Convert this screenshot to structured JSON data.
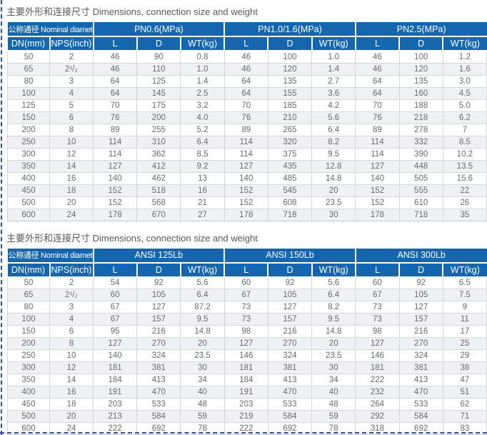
{
  "page": {
    "accent_blue": "#1467ae",
    "border_color": "#2d4f9e",
    "alt_row_color": "#eff1f4"
  },
  "sections": [
    {
      "title": "主要外形和连接尺寸 Dimensions, connection size and weight",
      "header": {
        "nominal_diameter": "公称通径 Nominal diameter",
        "dn": "DN(mm)",
        "nps": "NPS(inch)",
        "groups": [
          "PN0.6(MPa)",
          "PN1.0/1.6(MPa)",
          "PN2.5(MPa)"
        ],
        "sub": [
          "L",
          "D",
          "WT(kg)"
        ]
      },
      "rows": [
        [
          "50",
          "2",
          "46",
          "90",
          "0.8",
          "46",
          "100",
          "1.0",
          "46",
          "100",
          "1.2"
        ],
        [
          "65",
          "2¹/₂",
          "46",
          "110",
          "1.0",
          "46",
          "120",
          "1.4",
          "46",
          "120",
          "1.6"
        ],
        [
          "80",
          "3",
          "64",
          "125",
          "1.4",
          "64",
          "135",
          "2.7",
          "64",
          "135",
          "3.0"
        ],
        [
          "100",
          "4",
          "64",
          "145",
          "2.5",
          "64",
          "155",
          "3.6",
          "64",
          "160",
          "4.5"
        ],
        [
          "125",
          "5",
          "70",
          "175",
          "3.2",
          "70",
          "185",
          "4.2",
          "70",
          "188",
          "5.0"
        ],
        [
          "150",
          "6",
          "76",
          "200",
          "4.0",
          "76",
          "210",
          "5.6",
          "76",
          "218",
          "6.2"
        ],
        [
          "200",
          "8",
          "89",
          "255",
          "5.2",
          "89",
          "265",
          "6.4",
          "89",
          "278",
          "7"
        ],
        [
          "250",
          "10",
          "114",
          "310",
          "6.4",
          "114",
          "320",
          "8.2",
          "114",
          "332",
          "8.5"
        ],
        [
          "300",
          "12",
          "114",
          "362",
          "8.5",
          "114",
          "375",
          "9.5",
          "114",
          "390",
          "10.2"
        ],
        [
          "350",
          "14",
          "127",
          "412",
          "9.2",
          "127",
          "435",
          "12.8",
          "127",
          "448",
          "13.5"
        ],
        [
          "400",
          "16",
          "140",
          "462",
          "13",
          "140",
          "485",
          "14.8",
          "140",
          "505",
          "15.6"
        ],
        [
          "450",
          "18",
          "152",
          "518",
          "16",
          "152",
          "545",
          "20",
          "152",
          "555",
          "22"
        ],
        [
          "500",
          "20",
          "152",
          "568",
          "21",
          "152",
          "608",
          "23.5",
          "152",
          "610",
          "26"
        ],
        [
          "600",
          "24",
          "178",
          "670",
          "27",
          "178",
          "718",
          "30",
          "178",
          "718",
          "35"
        ]
      ]
    },
    {
      "title": "主要外形和连接尺寸 Dimensions, connection size and weight",
      "header": {
        "nominal_diameter": "公称通径 Nominal diameter",
        "dn": "DN(mm)",
        "nps": "NPS(inch)",
        "groups": [
          "ANSI 125Lb",
          "ANSI 150Lb",
          "ANSI 300Lb"
        ],
        "sub": [
          "L",
          "D",
          "WT(kg)"
        ]
      },
      "rows": [
        [
          "50",
          "2",
          "54",
          "92",
          "5.6",
          "60",
          "92",
          "5.6",
          "60",
          "92",
          "6.5"
        ],
        [
          "65",
          "2¹/₂",
          "60",
          "105",
          "6.4",
          "67",
          "105",
          "6.4",
          "67",
          "105",
          "7.5"
        ],
        [
          "80",
          "3",
          "67",
          "127",
          "87.2",
          "73",
          "127",
          "8.2",
          "73",
          "127",
          "9"
        ],
        [
          "100",
          "4",
          "67",
          "157",
          "9.5",
          "73",
          "157",
          "9.5",
          "73",
          "157",
          "11"
        ],
        [
          "150",
          "6",
          "95",
          "216",
          "14.8",
          "98",
          "216",
          "14.8",
          "98",
          "216",
          "17"
        ],
        [
          "200",
          "8",
          "127",
          "270",
          "20",
          "127",
          "270",
          "20",
          "127",
          "270",
          "25"
        ],
        [
          "250",
          "10",
          "140",
          "324",
          "23.5",
          "146",
          "324",
          "23.5",
          "146",
          "324",
          "29"
        ],
        [
          "300",
          "12",
          "181",
          "381",
          "30",
          "181",
          "381",
          "30",
          "181",
          "381",
          "38"
        ],
        [
          "350",
          "14",
          "184",
          "413",
          "34",
          "184",
          "413",
          "34",
          "222",
          "413",
          "47"
        ],
        [
          "400",
          "16",
          "191",
          "470",
          "40",
          "191",
          "470",
          "40",
          "232",
          "470",
          "51"
        ],
        [
          "450",
          "18",
          "203",
          "533",
          "48",
          "203",
          "533",
          "48",
          "264",
          "533",
          "62"
        ],
        [
          "500",
          "20",
          "213",
          "584",
          "59",
          "219",
          "584",
          "59",
          "292",
          "584",
          "71"
        ],
        [
          "600",
          "24",
          "222",
          "692",
          "78",
          "222",
          "692",
          "78",
          "318",
          "692",
          "83"
        ]
      ]
    }
  ]
}
